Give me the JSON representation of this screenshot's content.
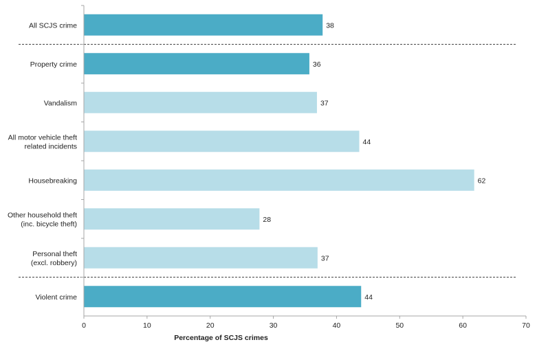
{
  "chart_data": {
    "type": "bar",
    "orientation": "horizontal",
    "categories": [
      "All SCJS crime",
      "Property crime",
      "Vandalism",
      "All motor vehicle theft related incidents",
      "Housebreaking",
      "Other household theft (inc. bicycle theft)",
      "Personal theft (excl. robbery)",
      "Violent crime"
    ],
    "category_lines": [
      [
        "All SCJS crime"
      ],
      [
        "Property crime"
      ],
      [
        "Vandalism"
      ],
      [
        "All motor vehicle theft",
        "related incidents"
      ],
      [
        "Housebreaking"
      ],
      [
        "Other household theft",
        "(inc. bicycle theft)"
      ],
      [
        "Personal theft",
        "(excl. robbery)"
      ],
      [
        "Violent crime"
      ]
    ],
    "values": [
      37.8,
      35.7,
      36.9,
      43.6,
      61.8,
      27.8,
      37.0,
      43.9
    ],
    "data_labels": [
      "38",
      "36",
      "37",
      "44",
      "62",
      "28",
      "37",
      "44"
    ],
    "bar_styles": [
      "dark",
      "dark",
      "light",
      "light",
      "light",
      "light",
      "light",
      "dark"
    ],
    "colors": {
      "dark": "#4bacc6",
      "light": "#b7dde8"
    },
    "separators_after": [
      0,
      6
    ],
    "xlabel": "Percentage of SCJS crimes",
    "ylabel": "",
    "xlim": [
      0,
      70
    ],
    "xticks": [
      0,
      10,
      20,
      30,
      40,
      50,
      60,
      70
    ],
    "grid": false,
    "legend": "none"
  }
}
